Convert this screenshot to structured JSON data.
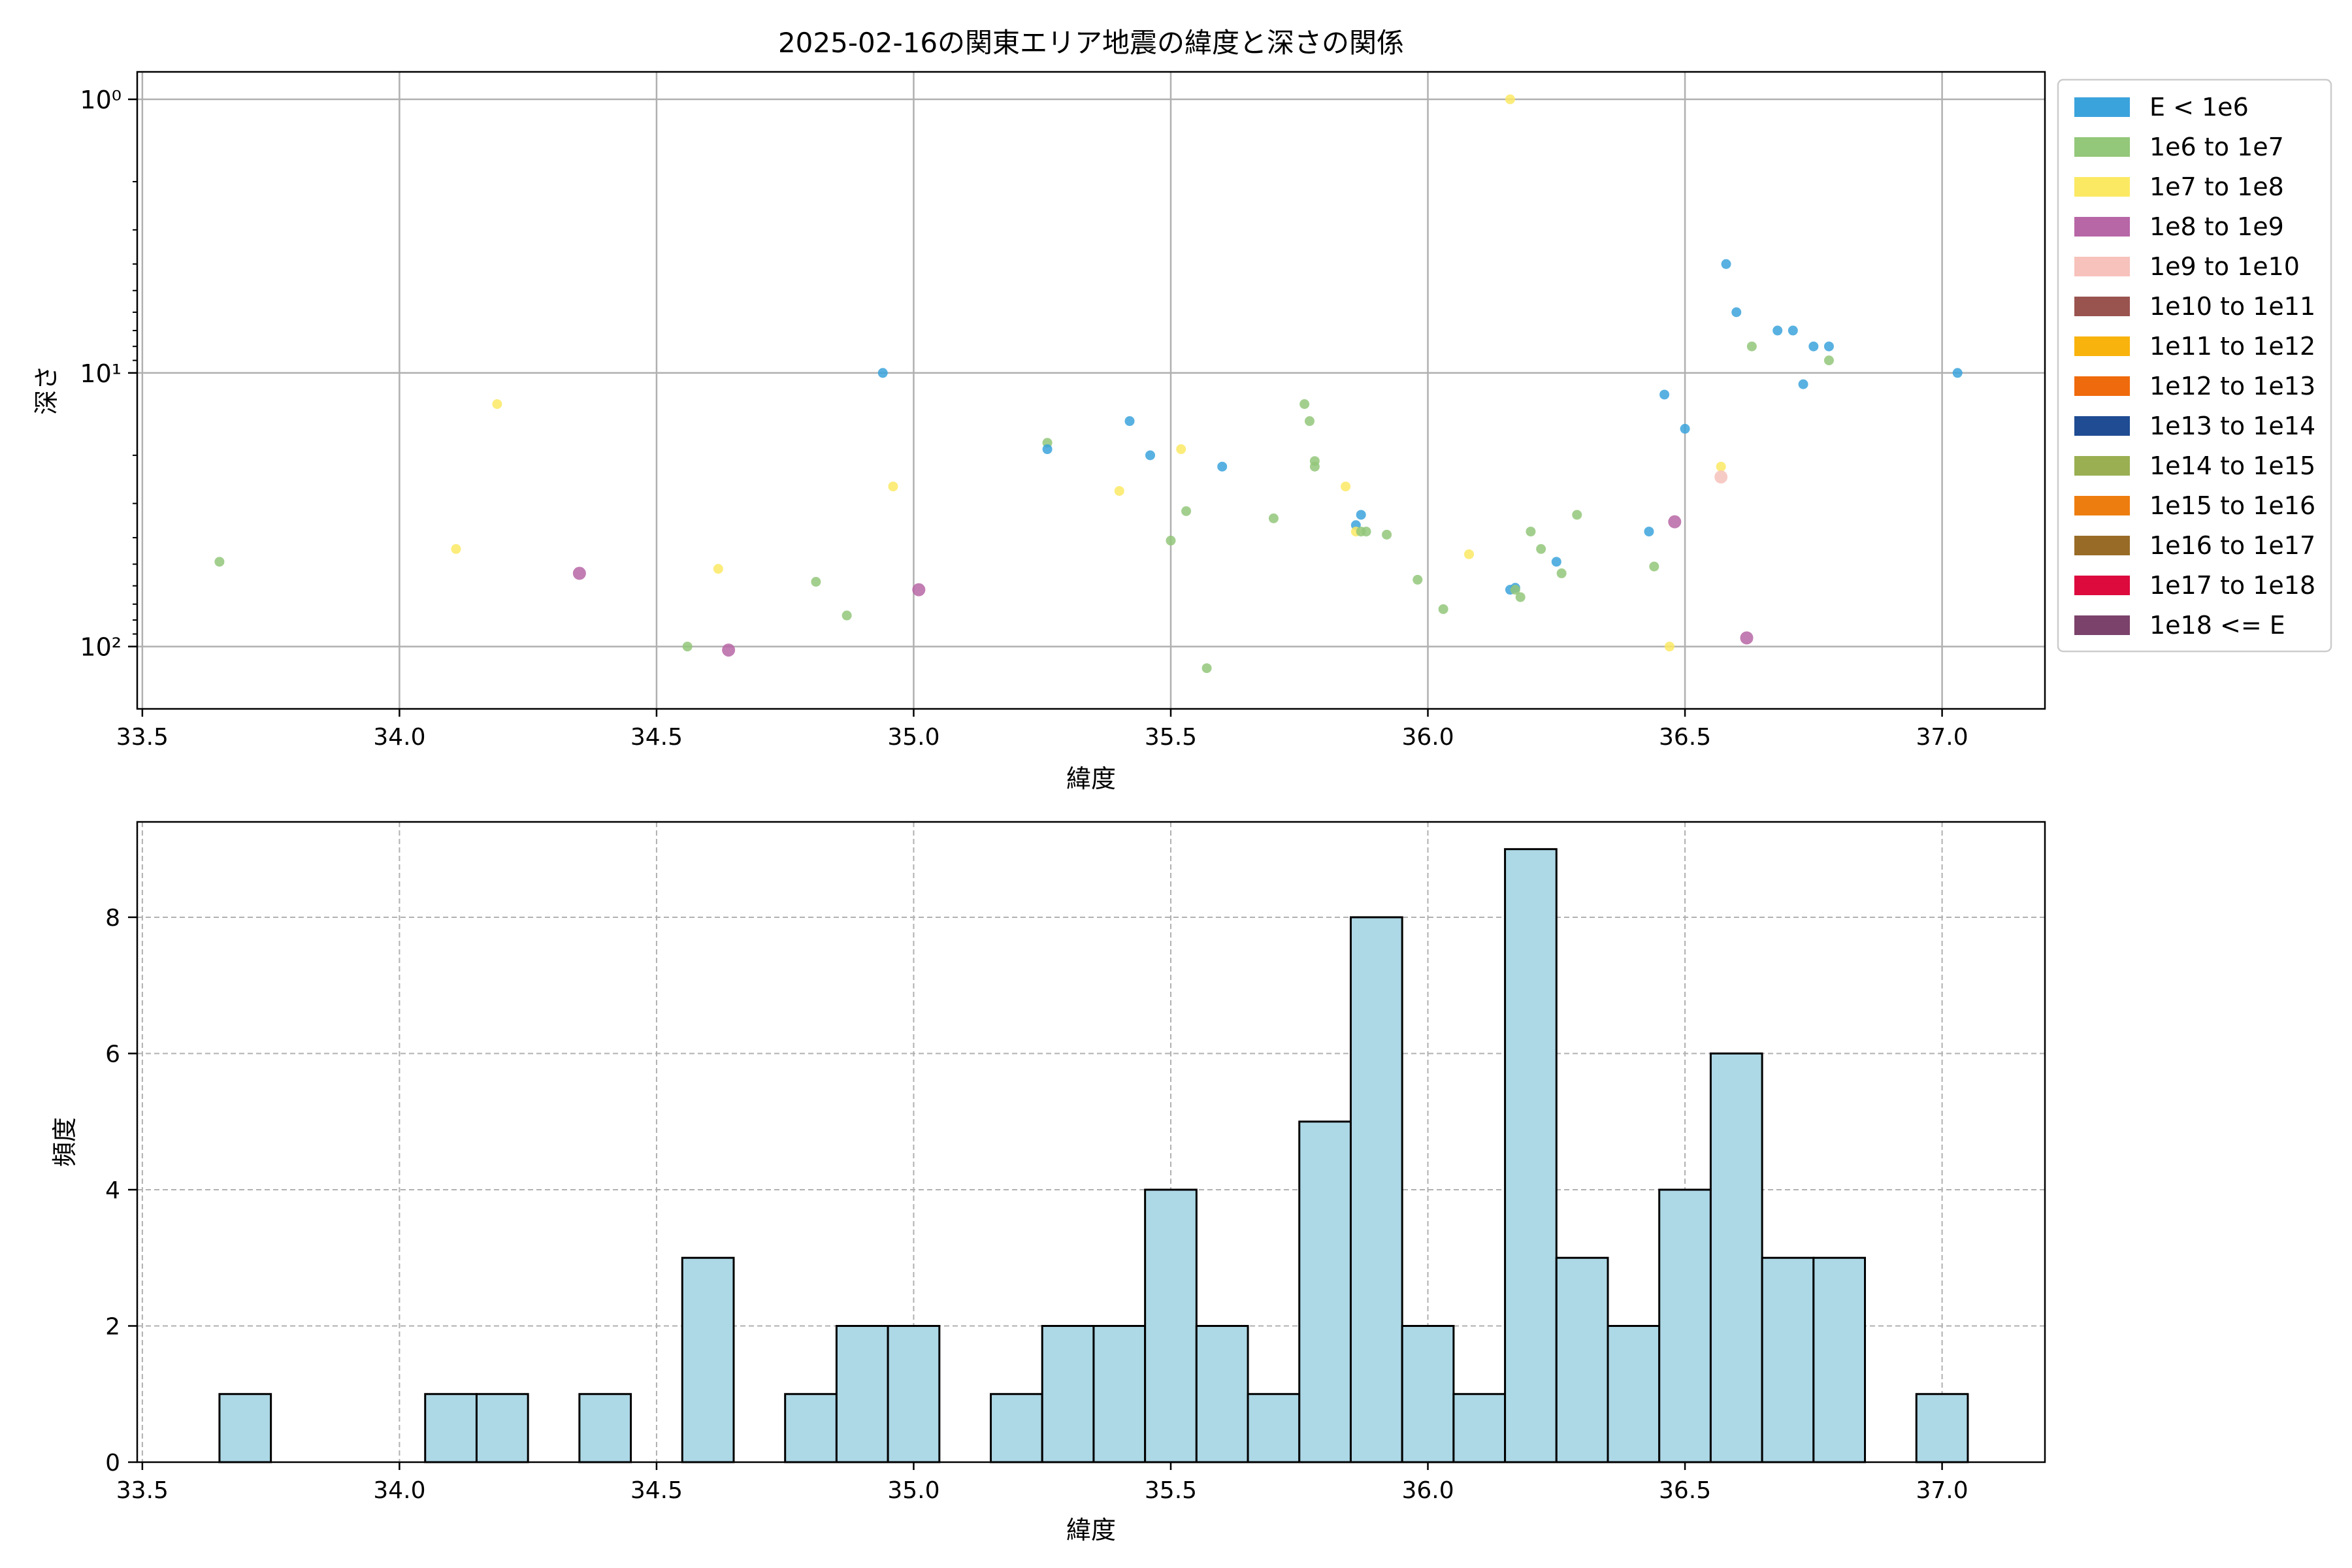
{
  "chart_data": [
    {
      "type": "scatter",
      "title": "2025-02-16の関東エリア地震の緯度と深さの関係",
      "xlabel": "緯度",
      "ylabel": "深さ",
      "xlim": [
        33.49,
        37.2
      ],
      "ylim_inverted_log": [
        1.0,
        115
      ],
      "y_scale": "log (inverted)",
      "x_ticks": [
        33.5,
        34.0,
        34.5,
        35.0,
        35.5,
        36.0,
        36.5,
        37.0
      ],
      "x_tick_labels": [
        "33.5",
        "34.0",
        "34.5",
        "35.0",
        "35.5",
        "36.0",
        "36.5",
        "37.0"
      ],
      "y_ticks": [
        1,
        10,
        100
      ],
      "y_tick_labels": [
        "10⁰",
        "10¹",
        "10²"
      ],
      "grid": true,
      "legend_position": "outside-right",
      "legend": [
        {
          "label": "E < 1e6",
          "color": "#3ba3dc"
        },
        {
          "label": "1e6 to 1e7",
          "color": "#93c77a"
        },
        {
          "label": "1e7 to 1e8",
          "color": "#fbe964"
        },
        {
          "label": "1e8 to 1e9",
          "color": "#b766a6"
        },
        {
          "label": "1e9 to 1e10",
          "color": "#f6c2bb"
        },
        {
          "label": "1e10 to 1e11",
          "color": "#9a5450"
        },
        {
          "label": "1e11 to 1e12",
          "color": "#f9b30d"
        },
        {
          "label": "1e12 to 1e13",
          "color": "#ef6a0c"
        },
        {
          "label": "1e13 to 1e14",
          "color": "#1f4c92"
        },
        {
          "label": "1e14 to 1e15",
          "color": "#9aaf52"
        },
        {
          "label": "1e15 to 1e16",
          "color": "#ee7d0f"
        },
        {
          "label": "1e16 to 1e17",
          "color": "#986c27"
        },
        {
          "label": "1e17 to 1e18",
          "color": "#dd0a3e"
        },
        {
          "label": "1e18 <= E",
          "color": "#7b426b"
        }
      ],
      "points": [
        {
          "x": 33.65,
          "y": 49,
          "c": 1
        },
        {
          "x": 34.11,
          "y": 44,
          "c": 2
        },
        {
          "x": 34.19,
          "y": 13,
          "c": 2
        },
        {
          "x": 34.35,
          "y": 54,
          "c": 3
        },
        {
          "x": 34.56,
          "y": 100,
          "c": 1
        },
        {
          "x": 34.62,
          "y": 52,
          "c": 2
        },
        {
          "x": 34.64,
          "y": 103,
          "c": 3
        },
        {
          "x": 34.81,
          "y": 58,
          "c": 1
        },
        {
          "x": 34.87,
          "y": 77,
          "c": 1
        },
        {
          "x": 34.94,
          "y": 10,
          "c": 0
        },
        {
          "x": 34.96,
          "y": 26,
          "c": 2
        },
        {
          "x": 35.01,
          "y": 62,
          "c": 3
        },
        {
          "x": 35.26,
          "y": 18,
          "c": 1
        },
        {
          "x": 35.26,
          "y": 19,
          "c": 0
        },
        {
          "x": 35.4,
          "y": 27,
          "c": 2
        },
        {
          "x": 35.42,
          "y": 15,
          "c": 0
        },
        {
          "x": 35.46,
          "y": 20,
          "c": 0
        },
        {
          "x": 35.5,
          "y": 41,
          "c": 1
        },
        {
          "x": 35.52,
          "y": 19,
          "c": 2
        },
        {
          "x": 35.53,
          "y": 32,
          "c": 1
        },
        {
          "x": 35.57,
          "y": 120,
          "c": 1
        },
        {
          "x": 35.6,
          "y": 22,
          "c": 0
        },
        {
          "x": 35.7,
          "y": 34,
          "c": 1
        },
        {
          "x": 35.76,
          "y": 13,
          "c": 1
        },
        {
          "x": 35.77,
          "y": 15,
          "c": 1
        },
        {
          "x": 35.78,
          "y": 21,
          "c": 1
        },
        {
          "x": 35.78,
          "y": 22,
          "c": 1
        },
        {
          "x": 35.84,
          "y": 26,
          "c": 2
        },
        {
          "x": 35.86,
          "y": 36,
          "c": 0
        },
        {
          "x": 35.87,
          "y": 33,
          "c": 0
        },
        {
          "x": 35.86,
          "y": 38,
          "c": 2
        },
        {
          "x": 35.87,
          "y": 38,
          "c": 1
        },
        {
          "x": 35.88,
          "y": 38,
          "c": 1
        },
        {
          "x": 35.92,
          "y": 39,
          "c": 1
        },
        {
          "x": 35.98,
          "y": 57,
          "c": 1
        },
        {
          "x": 36.03,
          "y": 73,
          "c": 1
        },
        {
          "x": 36.08,
          "y": 46,
          "c": 2
        },
        {
          "x": 36.16,
          "y": 1.0,
          "c": 2
        },
        {
          "x": 36.16,
          "y": 62,
          "c": 0
        },
        {
          "x": 36.17,
          "y": 61,
          "c": 0
        },
        {
          "x": 36.17,
          "y": 62,
          "c": 1
        },
        {
          "x": 36.18,
          "y": 66,
          "c": 1
        },
        {
          "x": 36.2,
          "y": 38,
          "c": 1
        },
        {
          "x": 36.22,
          "y": 44,
          "c": 1
        },
        {
          "x": 36.25,
          "y": 49,
          "c": 0
        },
        {
          "x": 36.26,
          "y": 54,
          "c": 1
        },
        {
          "x": 36.29,
          "y": 33,
          "c": 1
        },
        {
          "x": 36.43,
          "y": 38,
          "c": 0
        },
        {
          "x": 36.44,
          "y": 51,
          "c": 1
        },
        {
          "x": 36.46,
          "y": 12,
          "c": 0
        },
        {
          "x": 36.47,
          "y": 100,
          "c": 2
        },
        {
          "x": 36.48,
          "y": 35,
          "c": 3
        },
        {
          "x": 36.5,
          "y": 16,
          "c": 0
        },
        {
          "x": 36.57,
          "y": 22,
          "c": 2
        },
        {
          "x": 36.57,
          "y": 24,
          "c": 4
        },
        {
          "x": 36.58,
          "y": 4.0,
          "c": 0
        },
        {
          "x": 36.6,
          "y": 6.0,
          "c": 0
        },
        {
          "x": 36.62,
          "y": 93,
          "c": 3
        },
        {
          "x": 36.63,
          "y": 8.0,
          "c": 1
        },
        {
          "x": 36.68,
          "y": 7.0,
          "c": 0
        },
        {
          "x": 36.71,
          "y": 7.0,
          "c": 0
        },
        {
          "x": 36.73,
          "y": 11,
          "c": 0
        },
        {
          "x": 36.75,
          "y": 8.0,
          "c": 0
        },
        {
          "x": 36.78,
          "y": 8.0,
          "c": 0
        },
        {
          "x": 36.78,
          "y": 9.0,
          "c": 1
        },
        {
          "x": 37.03,
          "y": 10,
          "c": 0
        }
      ]
    },
    {
      "type": "bar",
      "xlabel": "緯度",
      "ylabel": "頻度",
      "xlim": [
        33.49,
        37.2
      ],
      "ylim": [
        0,
        9.4
      ],
      "x_ticks": [
        33.5,
        34.0,
        34.5,
        35.0,
        35.5,
        36.0,
        36.5,
        37.0
      ],
      "x_tick_labels": [
        "33.5",
        "34.0",
        "34.5",
        "35.0",
        "35.5",
        "36.0",
        "36.5",
        "37.0"
      ],
      "y_ticks": [
        0,
        2,
        4,
        6,
        8
      ],
      "y_tick_labels": [
        "0",
        "2",
        "4",
        "6",
        "8"
      ],
      "grid": true,
      "bar_color": "#add8e6",
      "bins": [
        {
          "start": 33.65,
          "end": 33.75,
          "count": 1
        },
        {
          "start": 34.05,
          "end": 34.15,
          "count": 1
        },
        {
          "start": 34.15,
          "end": 34.25,
          "count": 1
        },
        {
          "start": 34.35,
          "end": 34.45,
          "count": 1
        },
        {
          "start": 34.55,
          "end": 34.65,
          "count": 3
        },
        {
          "start": 34.75,
          "end": 34.85,
          "count": 1
        },
        {
          "start": 34.85,
          "end": 34.95,
          "count": 2
        },
        {
          "start": 34.95,
          "end": 35.05,
          "count": 2
        },
        {
          "start": 35.15,
          "end": 35.25,
          "count": 1
        },
        {
          "start": 35.25,
          "end": 35.35,
          "count": 2
        },
        {
          "start": 35.35,
          "end": 35.45,
          "count": 2
        },
        {
          "start": 35.45,
          "end": 35.55,
          "count": 4
        },
        {
          "start": 35.55,
          "end": 35.65,
          "count": 2
        },
        {
          "start": 35.65,
          "end": 35.75,
          "count": 1
        },
        {
          "start": 35.75,
          "end": 35.85,
          "count": 5
        },
        {
          "start": 35.85,
          "end": 35.95,
          "count": 8
        },
        {
          "start": 35.95,
          "end": 36.05,
          "count": 2
        },
        {
          "start": 36.05,
          "end": 36.15,
          "count": 1
        },
        {
          "start": 36.15,
          "end": 36.25,
          "count": 9
        },
        {
          "start": 36.25,
          "end": 36.35,
          "count": 3
        },
        {
          "start": 36.35,
          "end": 36.45,
          "count": 2
        },
        {
          "start": 36.45,
          "end": 36.55,
          "count": 4
        },
        {
          "start": 36.55,
          "end": 36.65,
          "count": 6
        },
        {
          "start": 36.65,
          "end": 36.75,
          "count": 3
        },
        {
          "start": 36.75,
          "end": 36.85,
          "count": 3
        },
        {
          "start": 36.95,
          "end": 37.05,
          "count": 1
        }
      ]
    }
  ]
}
